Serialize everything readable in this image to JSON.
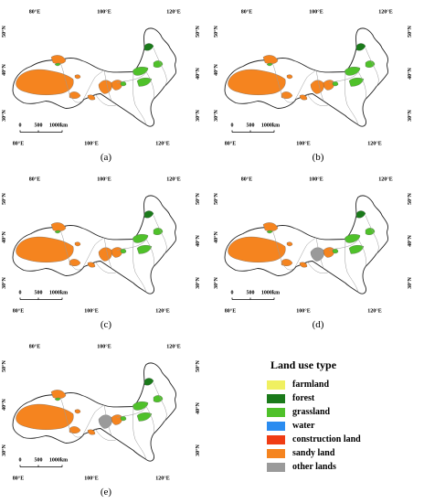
{
  "panels": [
    {
      "label": "(a)"
    },
    {
      "label": "(b)"
    },
    {
      "label": "(c)"
    },
    {
      "label": "(d)"
    },
    {
      "label": "(e)"
    }
  ],
  "map": {
    "lon_top": [
      "80°E",
      "100°E",
      "120°E"
    ],
    "lon_bottom": [
      "80°E",
      "100°E",
      "120°E"
    ],
    "lat_left": [
      "50°N",
      "40°N",
      "30°N"
    ],
    "lat_right": [
      "50°N",
      "40°N",
      "30°N"
    ],
    "scale_labels": [
      "0",
      "500",
      "1000km"
    ]
  },
  "legend": {
    "title": "Land use type",
    "items": [
      {
        "label": "farmland",
        "color": "#f0f060"
      },
      {
        "label": "forest",
        "color": "#1a7a1a"
      },
      {
        "label": "grassland",
        "color": "#4fc12a"
      },
      {
        "label": "water",
        "color": "#2b8cf0"
      },
      {
        "label": "construction land",
        "color": "#f03c14"
      },
      {
        "label": "sandy land",
        "color": "#f5841f"
      },
      {
        "label": "other lands",
        "color": "#9a9a9a"
      }
    ]
  },
  "colors": {
    "outline": "#222222",
    "inner_border": "#9a9a9a",
    "sandy": "#f5841f",
    "grass": "#4fc12a",
    "forest": "#1a7a1a",
    "other": "#9a9a9a"
  }
}
